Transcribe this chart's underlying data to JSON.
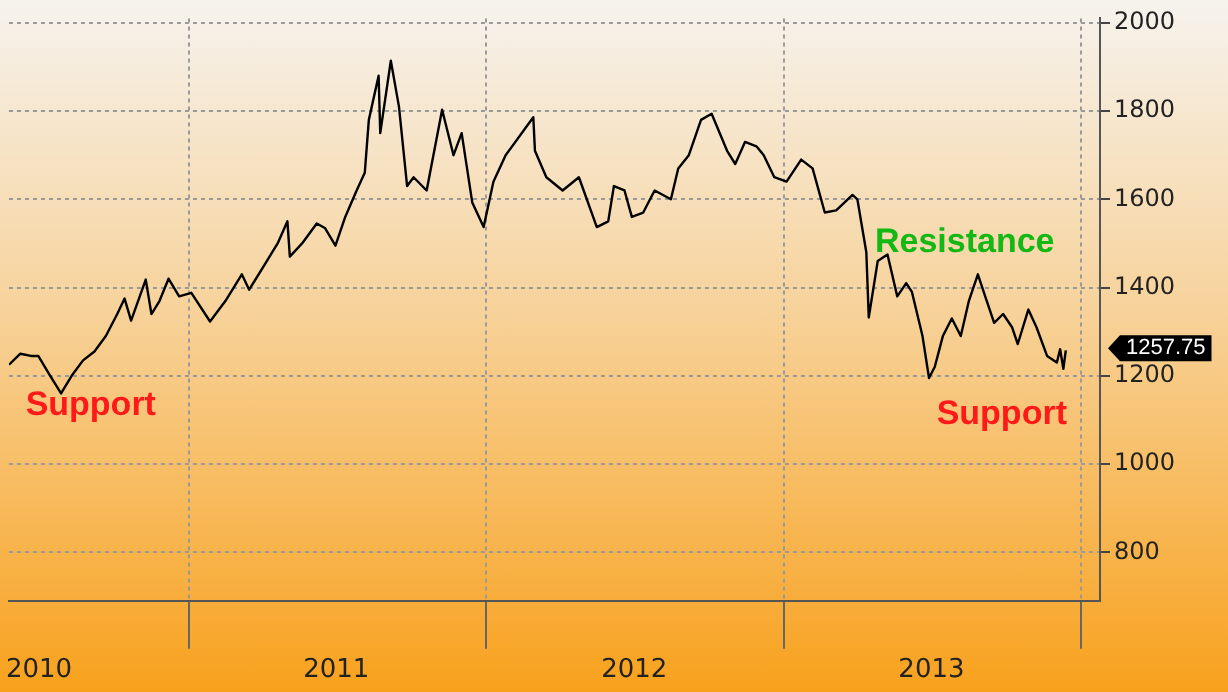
{
  "chart_data": {
    "type": "line",
    "x": [
      "2010-05-25",
      "2010-06-08",
      "2010-06-21",
      "2010-06-30",
      "2010-07-13",
      "2010-07-28",
      "2010-08-10",
      "2010-08-24",
      "2010-09-07",
      "2010-09-21",
      "2010-10-05",
      "2010-10-14",
      "2010-10-22",
      "2010-11-09",
      "2010-11-16",
      "2010-11-26",
      "2010-12-07",
      "2010-12-20",
      "2011-01-04",
      "2011-01-27",
      "2011-02-15",
      "2011-03-07",
      "2011-03-16",
      "2011-04-05",
      "2011-04-20",
      "2011-05-02",
      "2011-05-05",
      "2011-05-20",
      "2011-06-07",
      "2011-06-17",
      "2011-06-30",
      "2011-07-12",
      "2011-07-26",
      "2011-08-05",
      "2011-08-10",
      "2011-08-22",
      "2011-08-24",
      "2011-09-06",
      "2011-09-16",
      "2011-09-26",
      "2011-10-04",
      "2011-10-20",
      "2011-11-08",
      "2011-11-22",
      "2011-12-02",
      "2011-12-15",
      "2011-12-29",
      "2012-01-10",
      "2012-01-25",
      "2012-02-28",
      "2012-03-01",
      "2012-03-15",
      "2012-04-04",
      "2012-04-24",
      "2012-05-16",
      "2012-05-30",
      "2012-06-06",
      "2012-06-19",
      "2012-06-28",
      "2012-07-12",
      "2012-07-26",
      "2012-08-15",
      "2012-08-24",
      "2012-09-06",
      "2012-09-21",
      "2012-10-04",
      "2012-10-23",
      "2012-11-02",
      "2012-11-14",
      "2012-11-28",
      "2012-12-07",
      "2012-12-20",
      "2013-01-04",
      "2013-01-22",
      "2013-02-05",
      "2013-02-20",
      "2013-03-06",
      "2013-03-26",
      "2013-04-01",
      "2013-04-12",
      "2013-04-15",
      "2013-04-26",
      "2013-05-08",
      "2013-05-20",
      "2013-05-31",
      "2013-06-07",
      "2013-06-20",
      "2013-06-28",
      "2013-07-05",
      "2013-07-15",
      "2013-07-26",
      "2013-08-06",
      "2013-08-16",
      "2013-08-27",
      "2013-09-05",
      "2013-09-16",
      "2013-09-27",
      "2013-10-08",
      "2013-10-15",
      "2013-10-28",
      "2013-11-07",
      "2013-11-20",
      "2013-12-02",
      "2013-12-06",
      "2013-12-10",
      "2013-12-13"
    ],
    "series": [
      {
        "color": "#000000",
        "values": [
          1225,
          1250,
          1245,
          1245,
          1205,
          1160,
          1200,
          1235,
          1255,
          1290,
          1340,
          1375,
          1325,
          1418,
          1340,
          1370,
          1420,
          1380,
          1388,
          1323,
          1370,
          1430,
          1395,
          1455,
          1500,
          1550,
          1470,
          1500,
          1545,
          1535,
          1495,
          1560,
          1620,
          1660,
          1780,
          1880,
          1750,
          1914,
          1810,
          1630,
          1650,
          1620,
          1803,
          1700,
          1750,
          1593,
          1537,
          1640,
          1700,
          1786,
          1710,
          1650,
          1620,
          1650,
          1537,
          1550,
          1630,
          1620,
          1560,
          1570,
          1620,
          1600,
          1670,
          1700,
          1780,
          1794,
          1710,
          1680,
          1730,
          1720,
          1700,
          1650,
          1640,
          1690,
          1670,
          1570,
          1575,
          1610,
          1600,
          1480,
          1332,
          1460,
          1475,
          1380,
          1410,
          1390,
          1290,
          1195,
          1220,
          1290,
          1330,
          1290,
          1370,
          1430,
          1380,
          1320,
          1340,
          1310,
          1272,
          1350,
          1310,
          1245,
          1230,
          1260,
          1216,
          1257.75
        ]
      }
    ],
    "xlim": [
      "2010-05-25",
      "2014-01-24"
    ],
    "xticks": [
      {
        "value": "2010-07-01",
        "label": "2010"
      },
      {
        "value": "2011-01-01",
        "label": null
      },
      {
        "value": "2011-07-01",
        "label": "2011"
      },
      {
        "value": "2012-01-01",
        "label": null
      },
      {
        "value": "2012-07-01",
        "label": "2012"
      },
      {
        "value": "2013-01-01",
        "label": null
      },
      {
        "value": "2013-07-01",
        "label": "2013"
      },
      {
        "value": "2014-01-01",
        "label": null
      }
    ],
    "ylim": [
      690,
      2010
    ],
    "yticks": [
      800,
      1000,
      1200,
      1400,
      1600,
      1800,
      2000
    ],
    "grid": true,
    "legend": false,
    "marker": "none",
    "line_style": "solid",
    "annotations": [
      "Support",
      "Resistance",
      "Support",
      "1257.75"
    ]
  }
}
